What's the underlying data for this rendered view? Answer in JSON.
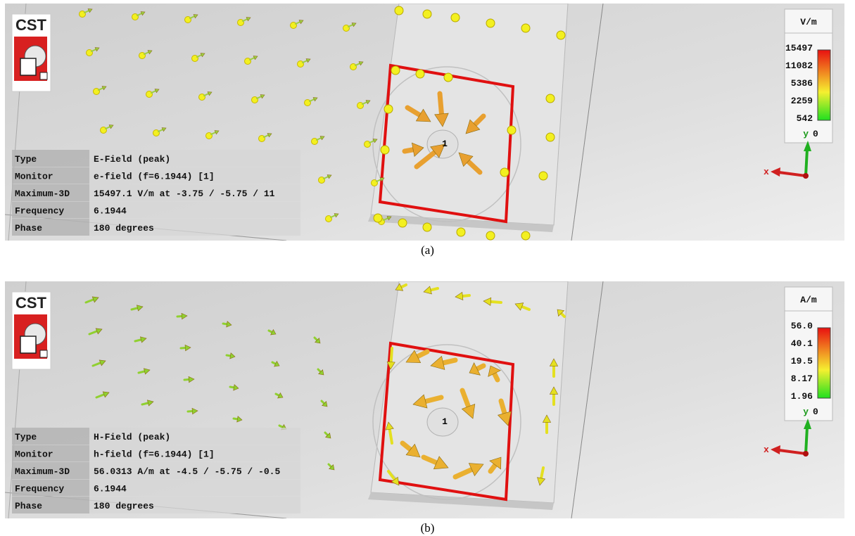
{
  "panels": [
    {
      "logo": "CST",
      "info": [
        {
          "label": "Type",
          "value": "E-Field (peak)"
        },
        {
          "label": "Monitor",
          "value": "e-field (f=6.1944) [1]"
        },
        {
          "label": "Maximum-3D",
          "value": "15497.1 V/m at -3.75 / -5.75 / 11"
        },
        {
          "label": "Frequency",
          "value": "6.1944"
        },
        {
          "label": "Phase",
          "value": "180 degrees"
        }
      ],
      "legend": {
        "unit": "V/m",
        "ticks": [
          "15497",
          "11082",
          "5386",
          "2259",
          "542"
        ],
        "axis": "y",
        "zero": "0"
      },
      "x_axis": "x",
      "port": "1",
      "caption": "(a)"
    },
    {
      "logo": "CST",
      "info": [
        {
          "label": "Type",
          "value": "H-Field (peak)"
        },
        {
          "label": "Monitor",
          "value": "h-field (f=6.1944) [1]"
        },
        {
          "label": "Maximum-3D",
          "value": "56.0313 A/m at -4.5 / -5.75 / -0.5"
        },
        {
          "label": "Frequency",
          "value": "6.1944"
        },
        {
          "label": "Phase",
          "value": "180 degrees"
        }
      ],
      "legend": {
        "unit": "A/m",
        "ticks": [
          "56.0",
          "40.1",
          "19.5",
          "8.17",
          "1.96"
        ],
        "axis": "y",
        "zero": "0"
      },
      "x_axis": "x",
      "port": "1",
      "caption": "(b)"
    }
  ]
}
